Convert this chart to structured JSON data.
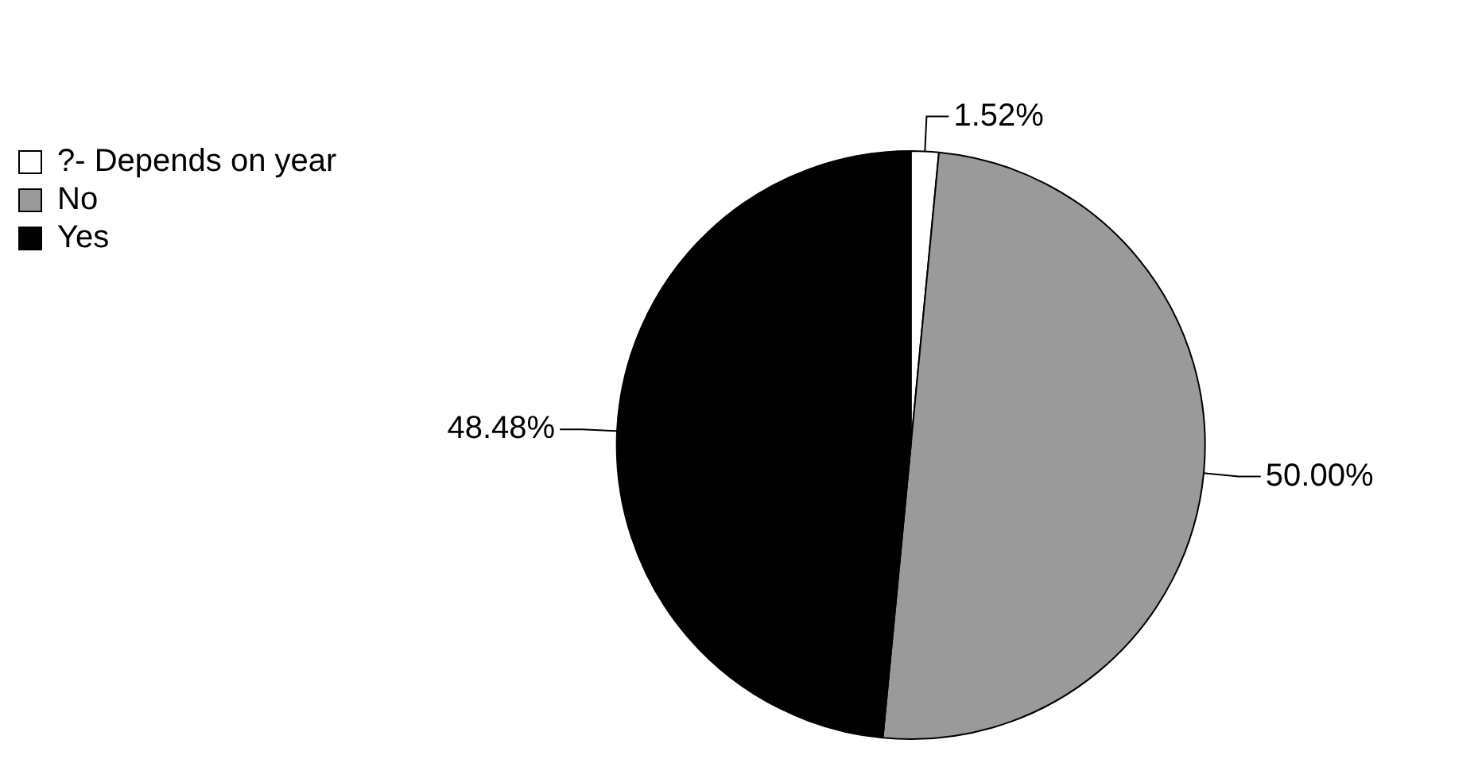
{
  "chart_data": {
    "type": "pie",
    "categories": [
      "?- Depends on year",
      "No",
      "Yes"
    ],
    "values": [
      1.52,
      50.0,
      48.48
    ],
    "colors": [
      "#ffffff",
      "#9a9a9a",
      "#000000"
    ],
    "value_labels": [
      "1.52%",
      "50.00%",
      "48.48%"
    ],
    "legend": "top left"
  }
}
